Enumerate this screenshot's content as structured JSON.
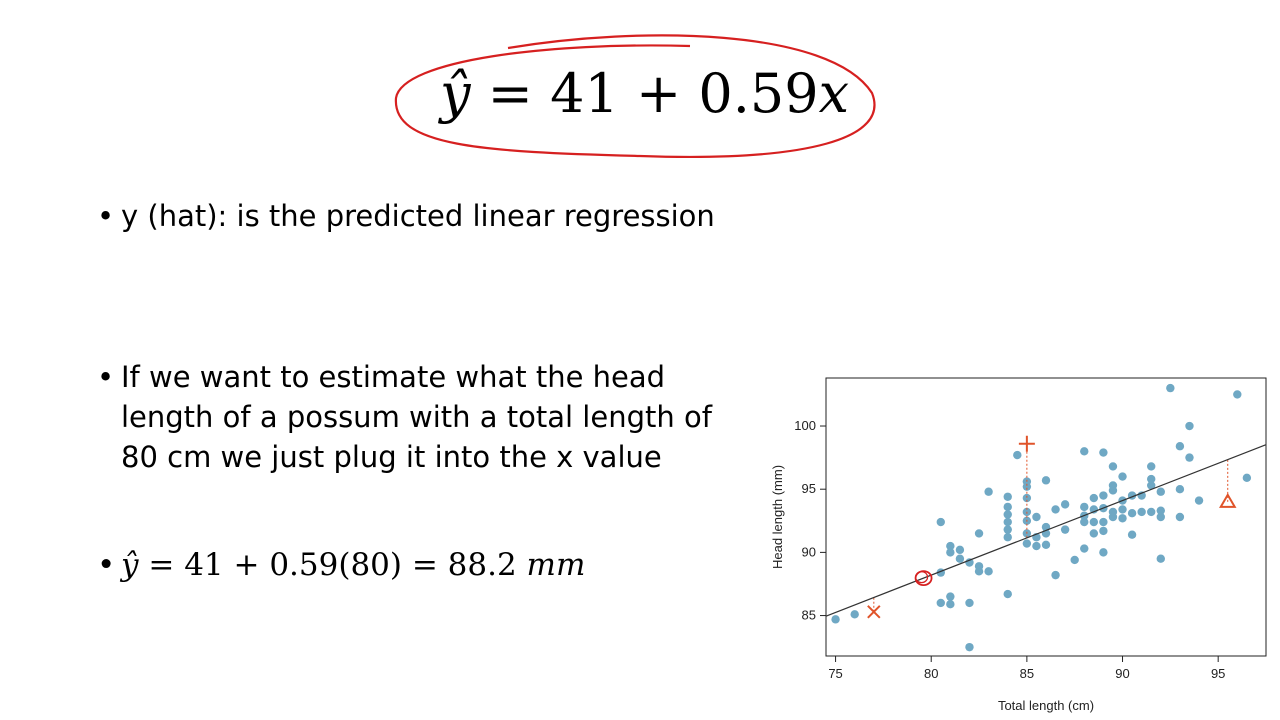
{
  "slide": {
    "title_equation": {
      "lhs": "ŷ",
      "eq": " = ",
      "rhs": "41 + 0.59",
      "var": "x"
    },
    "bullets": [
      {
        "text": "y (hat): is the predicted linear regression"
      },
      {
        "text": "If we want to estimate what the head length of a possum with a total length of 80 cm we just plug it into the x value"
      },
      {
        "lhs": "ŷ",
        "rhs": " = 41 + 0.59(80) = 88.2 ",
        "unit": "mm"
      }
    ],
    "bullet_symbol": "•",
    "annotation_color": "#d62020"
  },
  "chart_data": {
    "type": "scatter",
    "xlabel": "Total length (cm)",
    "ylabel": "Head length (mm)",
    "xlim": [
      74.5,
      97.5
    ],
    "ylim": [
      81.8,
      103.8
    ],
    "xticks": [
      75,
      80,
      85,
      90,
      95
    ],
    "yticks": [
      85,
      90,
      95,
      100
    ],
    "point_color": "#6fa8c4",
    "highlight_color": "#e0542a",
    "regression_line": {
      "intercept": 41,
      "slope": 0.59
    },
    "points": [
      [
        75.0,
        84.7
      ],
      [
        76.0,
        85.1
      ],
      [
        80.5,
        86.0
      ],
      [
        80.5,
        88.4
      ],
      [
        80.5,
        92.4
      ],
      [
        81.0,
        90.5
      ],
      [
        81.0,
        90.0
      ],
      [
        81.0,
        86.5
      ],
      [
        81.0,
        85.9
      ],
      [
        81.5,
        89.5
      ],
      [
        81.5,
        90.2
      ],
      [
        82.0,
        86.0
      ],
      [
        82.0,
        89.2
      ],
      [
        82.0,
        82.5
      ],
      [
        82.5,
        88.9
      ],
      [
        82.5,
        88.5
      ],
      [
        82.5,
        91.5
      ],
      [
        83.0,
        88.5
      ],
      [
        83.0,
        94.8
      ],
      [
        84.0,
        86.7
      ],
      [
        84.0,
        91.2
      ],
      [
        84.0,
        91.8
      ],
      [
        84.0,
        92.4
      ],
      [
        84.0,
        93.0
      ],
      [
        84.0,
        93.6
      ],
      [
        84.0,
        94.4
      ],
      [
        84.5,
        97.7
      ],
      [
        85.0,
        90.7
      ],
      [
        85.0,
        91.5
      ],
      [
        85.0,
        92.5
      ],
      [
        85.0,
        93.2
      ],
      [
        85.0,
        94.3
      ],
      [
        85.0,
        95.2
      ],
      [
        85.0,
        95.6
      ],
      [
        85.5,
        90.5
      ],
      [
        85.5,
        91.2
      ],
      [
        85.5,
        92.8
      ],
      [
        86.0,
        90.6
      ],
      [
        86.0,
        91.5
      ],
      [
        86.0,
        92.0
      ],
      [
        86.0,
        95.7
      ],
      [
        86.5,
        88.2
      ],
      [
        86.5,
        93.4
      ],
      [
        87.0,
        91.8
      ],
      [
        87.0,
        93.8
      ],
      [
        87.5,
        89.4
      ],
      [
        88.0,
        90.3
      ],
      [
        88.0,
        92.4
      ],
      [
        88.0,
        92.9
      ],
      [
        88.0,
        93.6
      ],
      [
        88.0,
        98.0
      ],
      [
        88.5,
        91.5
      ],
      [
        88.5,
        92.4
      ],
      [
        88.5,
        93.4
      ],
      [
        88.5,
        94.3
      ],
      [
        89.0,
        90.0
      ],
      [
        89.0,
        91.7
      ],
      [
        89.0,
        92.4
      ],
      [
        89.0,
        93.5
      ],
      [
        89.0,
        94.5
      ],
      [
        89.0,
        97.9
      ],
      [
        89.5,
        92.8
      ],
      [
        89.5,
        93.2
      ],
      [
        89.5,
        94.9
      ],
      [
        89.5,
        95.3
      ],
      [
        89.5,
        96.8
      ],
      [
        90.0,
        92.7
      ],
      [
        90.0,
        93.4
      ],
      [
        90.0,
        94.1
      ],
      [
        90.0,
        96.0
      ],
      [
        90.5,
        91.4
      ],
      [
        90.5,
        93.1
      ],
      [
        90.5,
        94.5
      ],
      [
        91.0,
        93.2
      ],
      [
        91.0,
        94.5
      ],
      [
        91.5,
        93.2
      ],
      [
        91.5,
        95.3
      ],
      [
        91.5,
        95.8
      ],
      [
        91.5,
        96.8
      ],
      [
        92.0,
        89.5
      ],
      [
        92.0,
        92.8
      ],
      [
        92.0,
        93.3
      ],
      [
        92.0,
        94.8
      ],
      [
        92.5,
        103.0
      ],
      [
        93.0,
        92.8
      ],
      [
        93.0,
        95.0
      ],
      [
        93.0,
        98.4
      ],
      [
        93.5,
        97.5
      ],
      [
        93.5,
        100.0
      ],
      [
        94.0,
        94.1
      ],
      [
        96.0,
        102.5
      ],
      [
        96.5,
        95.9
      ]
    ],
    "highlighted": [
      {
        "symbol": "x",
        "x": 77.0,
        "y": 85.3
      },
      {
        "symbol": "+",
        "x": 85.0,
        "y": 98.6
      },
      {
        "symbol": "triangle",
        "x": 95.5,
        "y": 94.0
      }
    ]
  }
}
